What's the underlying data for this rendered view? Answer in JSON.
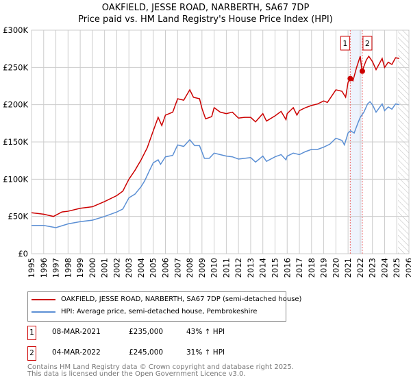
{
  "chart_data": {
    "type": "line",
    "title": "OAKFIELD, JESSE ROAD, NARBERTH, SA67 7DP",
    "subtitle": "Price paid vs. HM Land Registry's House Price Index (HPI)",
    "xlim": [
      1995,
      2026
    ],
    "ylim": [
      0,
      300000
    ],
    "yticks": [
      {
        "v": 0,
        "l": "£0"
      },
      {
        "v": 50000,
        "l": "£50K"
      },
      {
        "v": 100000,
        "l": "£100K"
      },
      {
        "v": 150000,
        "l": "£150K"
      },
      {
        "v": 200000,
        "l": "£200K"
      },
      {
        "v": 250000,
        "l": "£250K"
      },
      {
        "v": 300000,
        "l": "£300K"
      }
    ],
    "xticks": [
      "1995",
      "1996",
      "1997",
      "1998",
      "1999",
      "2000",
      "2001",
      "2002",
      "2003",
      "2004",
      "2005",
      "2006",
      "2007",
      "2008",
      "2009",
      "2010",
      "2011",
      "2012",
      "2013",
      "2014",
      "2015",
      "2016",
      "2017",
      "2018",
      "2019",
      "2020",
      "2021",
      "2022",
      "2023",
      "2024",
      "2025",
      "2026"
    ],
    "grid": true,
    "series": [
      {
        "name": "OAKFIELD, JESSE ROAD, NARBERTH, SA67 7DP (semi-detached house)",
        "color": "#cc0000",
        "x": [
          1995,
          1996,
          1996.8,
          1997.5,
          1998,
          1999,
          2000,
          2001,
          2002,
          2002.5,
          2003,
          2003.5,
          2004,
          2004.5,
          2005,
          2005.4,
          2005.7,
          2006,
          2006.6,
          2007,
          2007.5,
          2008,
          2008.3,
          2008.8,
          2009,
          2009.3,
          2009.8,
          2010,
          2010.5,
          2011,
          2011.5,
          2012,
          2012.5,
          2013,
          2013.4,
          2014,
          2014.3,
          2015,
          2015.5,
          2015.9,
          2016,
          2016.5,
          2016.8,
          2017,
          2017.5,
          2018,
          2018.5,
          2019,
          2019.3,
          2020,
          2020.5,
          2020.8,
          2021,
          2021.2,
          2021.4,
          2021.7,
          2022,
          2022.15,
          2022.5,
          2022.7,
          2023,
          2023.3,
          2023.8,
          2024,
          2024.3,
          2024.6,
          2024.9,
          2025.2
        ],
        "y": [
          55000,
          53000,
          50000,
          56000,
          57000,
          61000,
          63000,
          70000,
          78000,
          84000,
          100000,
          112000,
          126000,
          142000,
          165000,
          183000,
          172000,
          186000,
          190000,
          208000,
          206000,
          220000,
          210000,
          208000,
          195000,
          181000,
          184000,
          196000,
          190000,
          188000,
          190000,
          182000,
          183000,
          183000,
          177000,
          188000,
          178000,
          185000,
          191000,
          180000,
          188000,
          196000,
          186000,
          192000,
          196000,
          199000,
          201000,
          205000,
          203000,
          220000,
          218000,
          210000,
          230000,
          235000,
          232000,
          250000,
          265000,
          245000,
          260000,
          265000,
          258000,
          247000,
          262000,
          250000,
          257000,
          254000,
          263000,
          262000
        ]
      },
      {
        "name": "HPI: Average price, semi-detached house, Pembrokeshire",
        "color": "#5b8fd4",
        "x": [
          1995,
          1996,
          1997,
          1998,
          1999,
          2000,
          2001,
          2002,
          2002.5,
          2003,
          2003.5,
          2004,
          2004.3,
          2004.7,
          2005,
          2005.4,
          2005.6,
          2006,
          2006.6,
          2007,
          2007.5,
          2008,
          2008.4,
          2008.8,
          2009.2,
          2009.6,
          2010,
          2010.5,
          2011,
          2011.5,
          2012,
          2012.5,
          2013,
          2013.4,
          2014,
          2014.3,
          2015,
          2015.5,
          2015.9,
          2016,
          2016.5,
          2017,
          2017.5,
          2018,
          2018.5,
          2019,
          2019.5,
          2020,
          2020.5,
          2020.7,
          2021,
          2021.2,
          2021.5,
          2021.8,
          2022,
          2022.3,
          2022.6,
          2022.8,
          2023,
          2023.3,
          2023.8,
          2024,
          2024.3,
          2024.6,
          2024.9,
          2025.2
        ],
        "y": [
          38000,
          38000,
          35000,
          40000,
          43000,
          45000,
          50000,
          56000,
          60000,
          75000,
          80000,
          90000,
          98000,
          112000,
          122000,
          126000,
          120000,
          130000,
          132000,
          146000,
          144000,
          153000,
          145000,
          145000,
          128000,
          128000,
          135000,
          133000,
          131000,
          130000,
          127000,
          128000,
          129000,
          123000,
          131000,
          124000,
          130000,
          133000,
          126000,
          131000,
          135000,
          133000,
          137000,
          140000,
          140000,
          143000,
          147000,
          155000,
          152000,
          146000,
          162000,
          165000,
          162000,
          175000,
          183000,
          190000,
          201000,
          204000,
          200000,
          190000,
          201000,
          192000,
          197000,
          194000,
          201000,
          200000
        ]
      }
    ],
    "sales": [
      {
        "label": "1",
        "x": 2021.18,
        "y": 235000
      },
      {
        "label": "2",
        "x": 2022.17,
        "y": 245000
      }
    ],
    "projection_start": 2025.1
  },
  "sales_table": [
    {
      "num": "1",
      "date": "08-MAR-2021",
      "price": "£235,000",
      "hpi": "43% ↑ HPI"
    },
    {
      "num": "2",
      "date": "04-MAR-2022",
      "price": "£245,000",
      "hpi": "31% ↑ HPI"
    }
  ],
  "footer": {
    "line1": "Contains HM Land Registry data © Crown copyright and database right 2025.",
    "line2": "This data is licensed under the Open Government Licence v3.0."
  }
}
